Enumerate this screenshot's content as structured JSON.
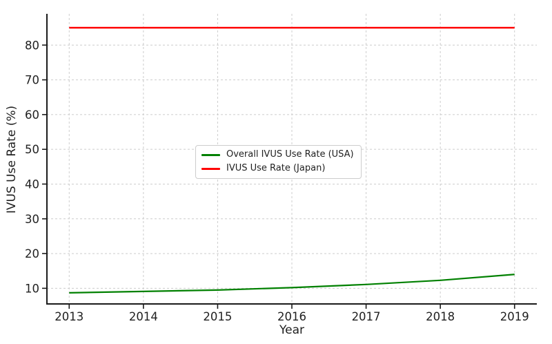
{
  "chart_data": {
    "type": "line",
    "title": "",
    "xlabel": "Year",
    "ylabel": "IVUS Use Rate (%)",
    "x": [
      2013,
      2014,
      2015,
      2016,
      2017,
      2018,
      2019
    ],
    "series": [
      {
        "name": "Overall IVUS Use Rate (USA)",
        "color": "#008000",
        "line_width": 2.2,
        "values": [
          8.7,
          9.1,
          9.5,
          10.2,
          11.1,
          12.3,
          14.0
        ]
      },
      {
        "name": "IVUS Use Rate (Japan)",
        "color": "#ff0000",
        "line_width": 2.6,
        "values": [
          85,
          85,
          85,
          85,
          85,
          85,
          85
        ]
      }
    ],
    "xticks": [
      2013,
      2014,
      2015,
      2016,
      2017,
      2018,
      2019
    ],
    "yticks": [
      10,
      20,
      30,
      40,
      50,
      60,
      70,
      80
    ],
    "xlim": [
      2012.7,
      2019.3
    ],
    "ylim": [
      5.5,
      89
    ],
    "grid": true,
    "grid_style": "dashed",
    "legend_position": "center",
    "colors": {
      "grid": "#cccccc",
      "axis": "#1a1a1a",
      "text": "#1f1f1f",
      "background": "#ffffff"
    }
  }
}
